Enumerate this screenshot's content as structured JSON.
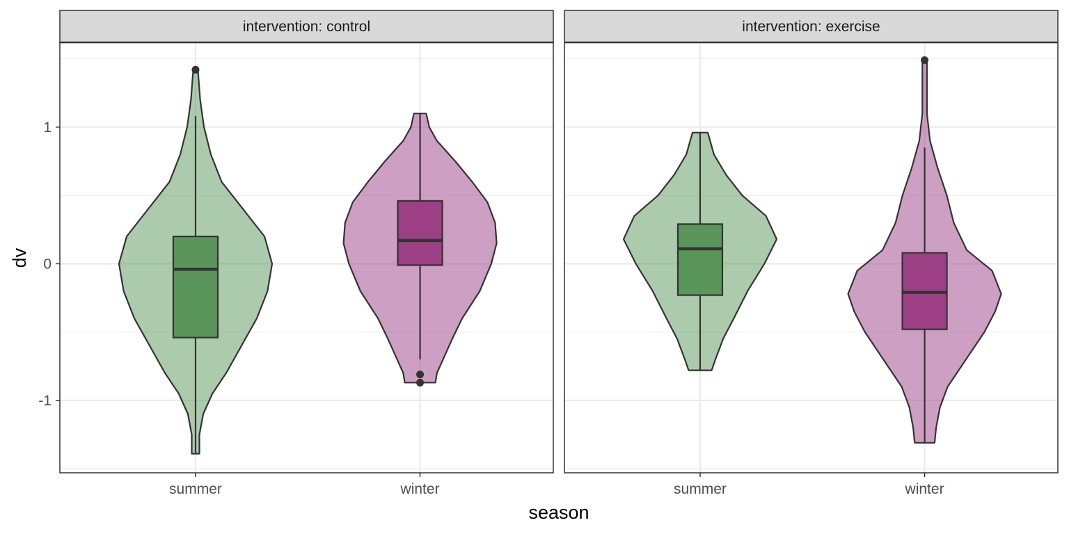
{
  "chart_data": {
    "type": "violin",
    "xlabel": "season",
    "ylabel": "dv",
    "ylim": [
      -1.53,
      1.62
    ],
    "yticks": [
      {
        "value": -1,
        "label": "-1"
      },
      {
        "value": 0,
        "label": "0"
      },
      {
        "value": 1,
        "label": "1"
      }
    ],
    "grid": true,
    "colors": {
      "summer": "#5a9559",
      "winter": "#9c3f85"
    },
    "categories": [
      "summer",
      "winter"
    ],
    "panels": [
      {
        "strip_label": "intervention: control",
        "groups": [
          {
            "category": "summer",
            "box": {
              "q1": -0.54,
              "median": -0.04,
              "q3": 0.2,
              "whisker_low": -1.39,
              "whisker_high": 1.08
            },
            "outliers": [
              1.42
            ],
            "density": [
              [
                -1.39,
                0.05
              ],
              [
                -1.25,
                0.05
              ],
              [
                -1.1,
                0.1
              ],
              [
                -0.95,
                0.22
              ],
              [
                -0.8,
                0.4
              ],
              [
                -0.6,
                0.6
              ],
              [
                -0.4,
                0.8
              ],
              [
                -0.2,
                0.94
              ],
              [
                0,
                1.0
              ],
              [
                0.2,
                0.9
              ],
              [
                0.4,
                0.62
              ],
              [
                0.6,
                0.34
              ],
              [
                0.8,
                0.2
              ],
              [
                1.0,
                0.11
              ],
              [
                1.2,
                0.06
              ],
              [
                1.35,
                0.04
              ],
              [
                1.42,
                0.03
              ]
            ]
          },
          {
            "category": "winter",
            "box": {
              "q1": -0.01,
              "median": 0.17,
              "q3": 0.46,
              "whisker_low": -0.7,
              "whisker_high": 1.1
            },
            "outliers": [
              -0.81,
              -0.87
            ],
            "density": [
              [
                -0.87,
                0.2
              ],
              [
                -0.8,
                0.22
              ],
              [
                -0.7,
                0.3
              ],
              [
                -0.55,
                0.42
              ],
              [
                -0.4,
                0.55
              ],
              [
                -0.2,
                0.78
              ],
              [
                0,
                0.93
              ],
              [
                0.15,
                1.0
              ],
              [
                0.3,
                0.98
              ],
              [
                0.45,
                0.88
              ],
              [
                0.6,
                0.68
              ],
              [
                0.75,
                0.46
              ],
              [
                0.9,
                0.22
              ],
              [
                1.0,
                0.12
              ],
              [
                1.1,
                0.08
              ]
            ]
          }
        ]
      },
      {
        "strip_label": "intervention: exercise",
        "groups": [
          {
            "category": "summer",
            "box": {
              "q1": -0.23,
              "median": 0.11,
              "q3": 0.29,
              "whisker_low": -0.78,
              "whisker_high": 0.96
            },
            "outliers": [],
            "density": [
              [
                -0.78,
                0.15
              ],
              [
                -0.7,
                0.2
              ],
              [
                -0.55,
                0.3
              ],
              [
                -0.4,
                0.44
              ],
              [
                -0.2,
                0.62
              ],
              [
                0,
                0.84
              ],
              [
                0.18,
                1.0
              ],
              [
                0.35,
                0.86
              ],
              [
                0.5,
                0.55
              ],
              [
                0.65,
                0.34
              ],
              [
                0.8,
                0.18
              ],
              [
                0.96,
                0.1
              ]
            ]
          },
          {
            "category": "winter",
            "box": {
              "q1": -0.48,
              "median": -0.21,
              "q3": 0.08,
              "whisker_low": -1.31,
              "whisker_high": 0.85
            },
            "outliers": [
              1.49
            ],
            "density": [
              [
                -1.31,
                0.13
              ],
              [
                -1.2,
                0.15
              ],
              [
                -1.05,
                0.2
              ],
              [
                -0.9,
                0.3
              ],
              [
                -0.7,
                0.54
              ],
              [
                -0.5,
                0.78
              ],
              [
                -0.35,
                0.92
              ],
              [
                -0.22,
                1.0
              ],
              [
                -0.05,
                0.88
              ],
              [
                0.1,
                0.55
              ],
              [
                0.3,
                0.38
              ],
              [
                0.5,
                0.29
              ],
              [
                0.7,
                0.17
              ],
              [
                0.9,
                0.07
              ],
              [
                1.1,
                0.03
              ],
              [
                1.2,
                0.03
              ],
              [
                1.35,
                0.03
              ],
              [
                1.49,
                0.03
              ]
            ]
          }
        ]
      }
    ]
  }
}
